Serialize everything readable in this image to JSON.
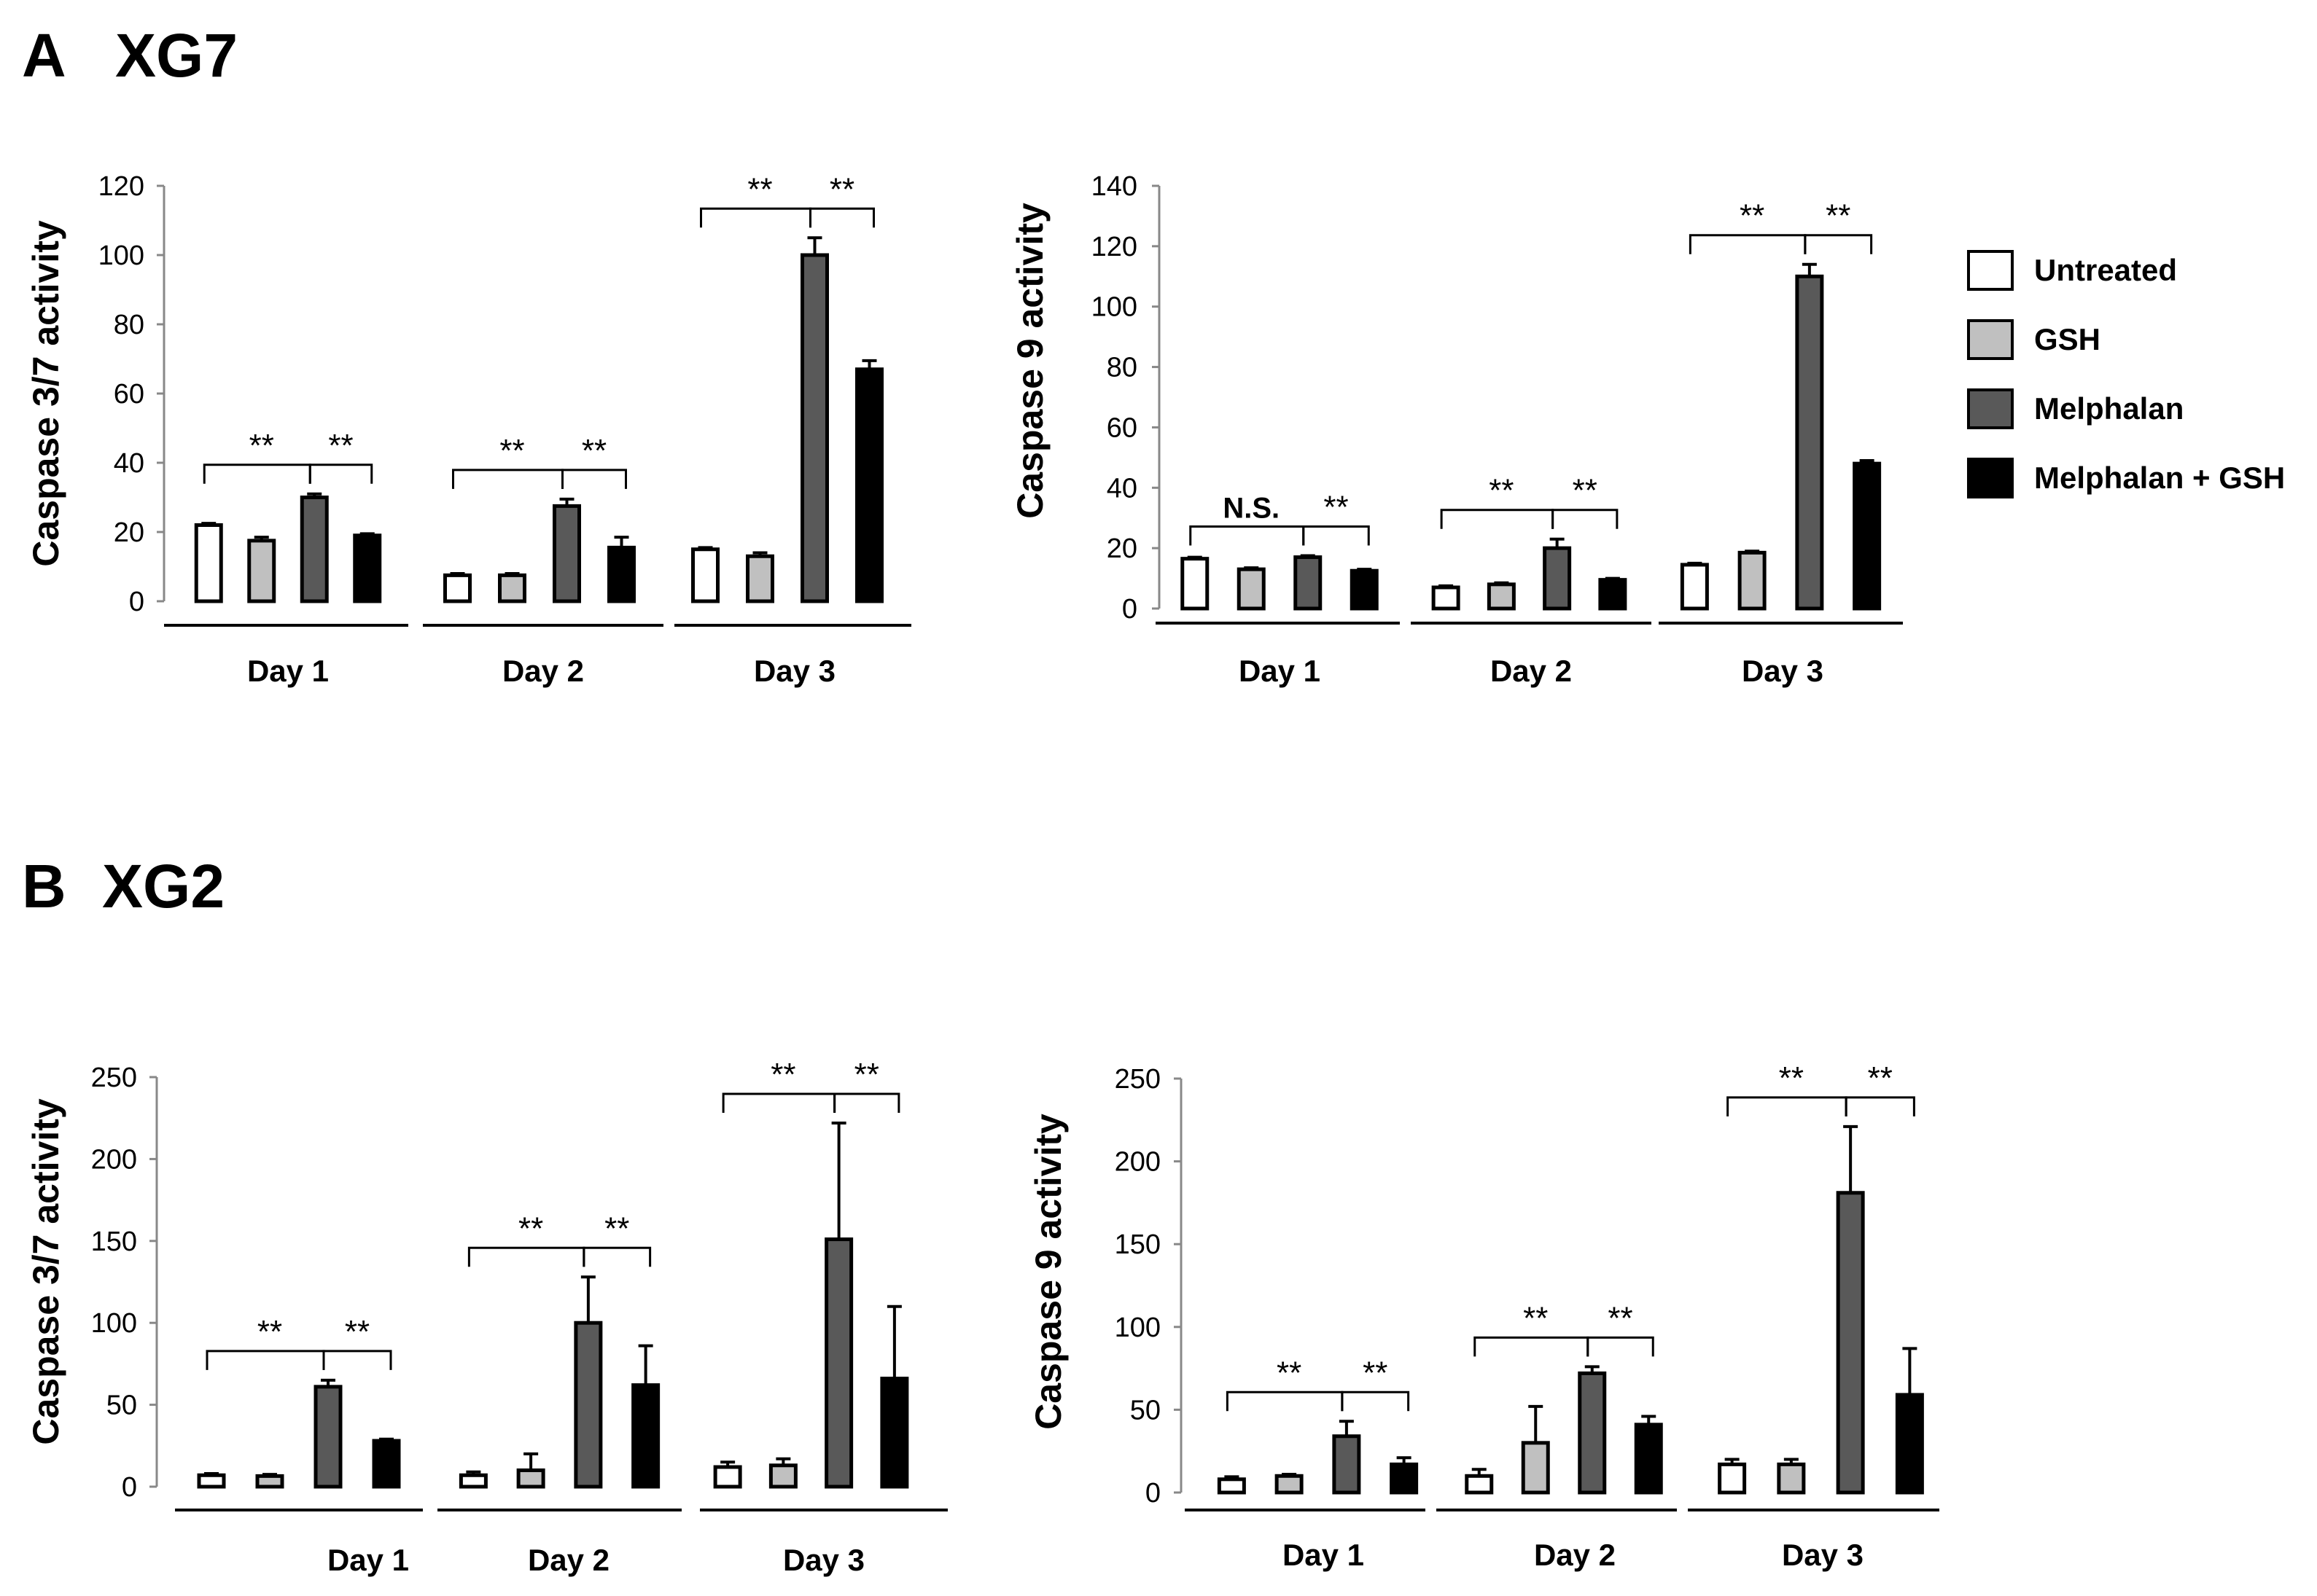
{
  "panels": {
    "A": {
      "letter": "A",
      "name": "XG7"
    },
    "B": {
      "letter": "B",
      "name": "XG2"
    }
  },
  "legend": [
    {
      "label": "Untreated",
      "color": "#ffffff"
    },
    {
      "label": "GSH",
      "color": "#c0c0c0"
    },
    {
      "label": "Melphalan",
      "color": "#595959"
    },
    {
      "label": "Melphalan + GSH",
      "color": "#000000"
    }
  ],
  "chart_data": [
    {
      "id": "A1",
      "panel": "A",
      "type": "bar",
      "ylabel": "Caspase 3/7 activity",
      "ylim": [
        0,
        120
      ],
      "yticks": [
        0,
        20,
        40,
        60,
        80,
        100,
        120
      ],
      "categories": [
        "Day 1",
        "Day 2",
        "Day 3"
      ],
      "series": [
        {
          "name": "Untreated",
          "values": [
            22,
            7.5,
            15
          ],
          "errors": [
            0.5,
            0.5,
            0.5
          ]
        },
        {
          "name": "GSH",
          "values": [
            17.5,
            7.5,
            13
          ],
          "errors": [
            1,
            0.5,
            1
          ]
        },
        {
          "name": "Melphalan",
          "values": [
            30,
            27.5,
            100
          ],
          "errors": [
            1,
            2,
            5
          ]
        },
        {
          "name": "Melphalan + GSH",
          "values": [
            19,
            15.5,
            67
          ],
          "errors": [
            0.5,
            3,
            2.5
          ]
        }
      ],
      "annotations": [
        {
          "day": 0,
          "from": 0,
          "to": 2,
          "text": "**"
        },
        {
          "day": 0,
          "from": 2,
          "to": 3,
          "text": "**"
        },
        {
          "day": 1,
          "from": 0,
          "to": 2,
          "text": "**"
        },
        {
          "day": 1,
          "from": 2,
          "to": 3,
          "text": "**"
        },
        {
          "day": 2,
          "from": 0,
          "to": 2,
          "text": "**"
        },
        {
          "day": 2,
          "from": 2,
          "to": 3,
          "text": "**"
        }
      ]
    },
    {
      "id": "A2",
      "panel": "A",
      "type": "bar",
      "ylabel": "Caspase 9 activity",
      "ylim": [
        0,
        140
      ],
      "yticks": [
        0,
        20,
        40,
        60,
        80,
        100,
        120,
        140
      ],
      "categories": [
        "Day 1",
        "Day 2",
        "Day 3"
      ],
      "series": [
        {
          "name": "Untreated",
          "values": [
            16.5,
            7,
            14.5
          ],
          "errors": [
            0.5,
            0.5,
            0.5
          ]
        },
        {
          "name": "GSH",
          "values": [
            13,
            8,
            18.5
          ],
          "errors": [
            0.5,
            0.5,
            0.5
          ]
        },
        {
          "name": "Melphalan",
          "values": [
            17,
            20,
            110
          ],
          "errors": [
            0.5,
            3,
            4
          ]
        },
        {
          "name": "Melphalan + GSH",
          "values": [
            12.5,
            9.5,
            48
          ],
          "errors": [
            0.5,
            0.5,
            1
          ]
        }
      ],
      "annotations": [
        {
          "day": 0,
          "from": 0,
          "to": 2,
          "text": "N.S."
        },
        {
          "day": 0,
          "from": 2,
          "to": 3,
          "text": "**"
        },
        {
          "day": 1,
          "from": 0,
          "to": 2,
          "text": "**"
        },
        {
          "day": 1,
          "from": 2,
          "to": 3,
          "text": "**"
        },
        {
          "day": 2,
          "from": 0,
          "to": 2,
          "text": "**"
        },
        {
          "day": 2,
          "from": 2,
          "to": 3,
          "text": "**"
        }
      ]
    },
    {
      "id": "B1",
      "panel": "B",
      "type": "bar",
      "ylabel": "Caspase 3/7 activity",
      "ylim": [
        0,
        250
      ],
      "yticks": [
        0,
        50,
        100,
        150,
        200,
        250
      ],
      "categories": [
        "Day 1",
        "Day 2",
        "Day 3"
      ],
      "series": [
        {
          "name": "Untreated",
          "values": [
            7,
            7,
            12
          ],
          "errors": [
            1,
            2,
            3
          ]
        },
        {
          "name": "GSH",
          "values": [
            6.5,
            10,
            13
          ],
          "errors": [
            1,
            10,
            4
          ]
        },
        {
          "name": "Melphalan",
          "values": [
            61,
            100,
            151
          ],
          "errors": [
            4,
            28,
            71
          ]
        },
        {
          "name": "Melphalan + GSH",
          "values": [
            28,
            62,
            66
          ],
          "errors": [
            1,
            24,
            44
          ]
        }
      ],
      "annotations": [
        {
          "day": 0,
          "from": 0,
          "to": 2,
          "text": "**"
        },
        {
          "day": 0,
          "from": 2,
          "to": 3,
          "text": "**"
        },
        {
          "day": 1,
          "from": 0,
          "to": 2,
          "text": "**"
        },
        {
          "day": 1,
          "from": 2,
          "to": 3,
          "text": "**"
        },
        {
          "day": 2,
          "from": 0,
          "to": 2,
          "text": "**"
        },
        {
          "day": 2,
          "from": 2,
          "to": 3,
          "text": "**"
        }
      ]
    },
    {
      "id": "B2",
      "panel": "B",
      "type": "bar",
      "ylabel": "Caspase 9 activity",
      "ylim": [
        0,
        250
      ],
      "yticks": [
        0,
        50,
        100,
        150,
        200,
        250
      ],
      "categories": [
        "Day 1",
        "Day 2",
        "Day 3"
      ],
      "series": [
        {
          "name": "Untreated",
          "values": [
            8,
            10,
            17
          ],
          "errors": [
            1.5,
            4,
            3
          ]
        },
        {
          "name": "GSH",
          "values": [
            10,
            30,
            17
          ],
          "errors": [
            1,
            22,
            3
          ]
        },
        {
          "name": "Melphalan",
          "values": [
            34,
            72,
            181
          ],
          "errors": [
            9,
            4,
            40
          ]
        },
        {
          "name": "Melphalan + GSH",
          "values": [
            17,
            41,
            59
          ],
          "errors": [
            4,
            5,
            28
          ]
        }
      ],
      "annotations": [
        {
          "day": 0,
          "from": 0,
          "to": 2,
          "text": "**"
        },
        {
          "day": 0,
          "from": 2,
          "to": 3,
          "text": "**"
        },
        {
          "day": 1,
          "from": 0,
          "to": 2,
          "text": "**"
        },
        {
          "day": 1,
          "from": 2,
          "to": 3,
          "text": "**"
        },
        {
          "day": 2,
          "from": 0,
          "to": 2,
          "text": "**"
        },
        {
          "day": 2,
          "from": 2,
          "to": 3,
          "text": "**"
        }
      ]
    }
  ]
}
